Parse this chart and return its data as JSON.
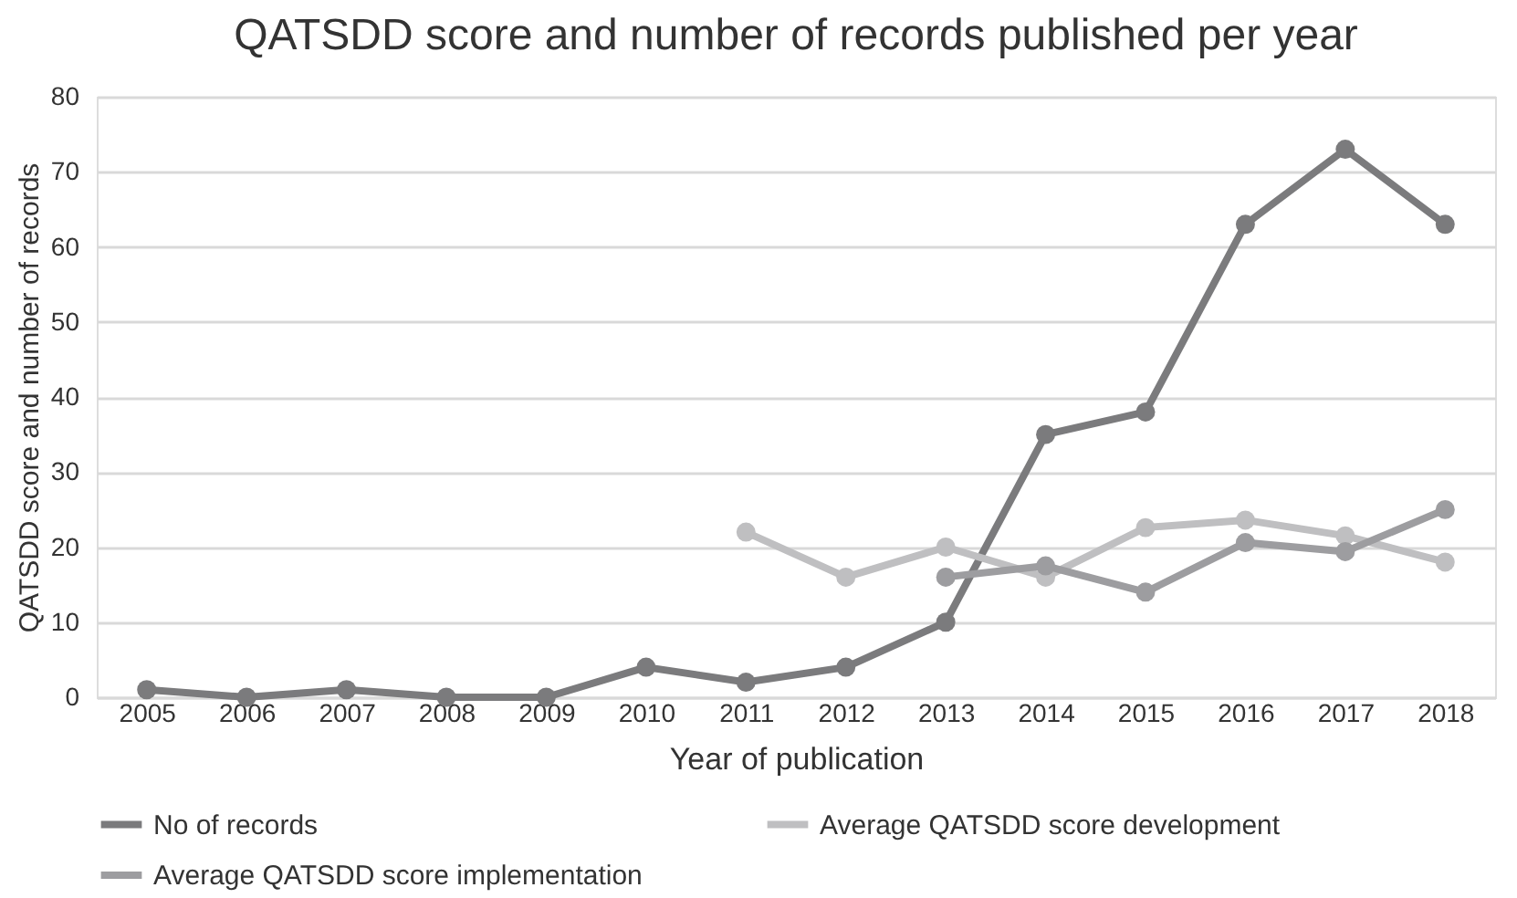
{
  "chart_data": {
    "type": "line",
    "title": "QATSDD score and number of records published per year",
    "xlabel": "Year of publication",
    "ylabel": "QATSDD score and number of records",
    "categories": [
      "2005",
      "2006",
      "2007",
      "2008",
      "2009",
      "2010",
      "2011",
      "2012",
      "2013",
      "2014",
      "2015",
      "2016",
      "2017",
      "2018"
    ],
    "series": [
      {
        "name": "No of records",
        "color": "#7b7b7d",
        "values": [
          1,
          0,
          1,
          0,
          0,
          4,
          2,
          4,
          10,
          35,
          38,
          63,
          73,
          63
        ]
      },
      {
        "name": "Average QATSDD score development",
        "color": "#bfbfc1",
        "values": [
          null,
          null,
          null,
          null,
          null,
          null,
          22,
          16,
          20,
          16,
          22.6,
          23.6,
          21.5,
          18
        ]
      },
      {
        "name": "Average QATSDD score implementation",
        "color": "#9d9da0",
        "values": [
          null,
          null,
          null,
          null,
          null,
          null,
          null,
          null,
          16,
          17.5,
          14,
          20.6,
          19.4,
          25
        ]
      }
    ],
    "ylim": [
      0,
      80
    ],
    "yticks": [
      0,
      10,
      20,
      30,
      40,
      50,
      60,
      70,
      80
    ],
    "grid": "y",
    "legend": "bottom",
    "marker": "circle",
    "line_style": "solid"
  }
}
